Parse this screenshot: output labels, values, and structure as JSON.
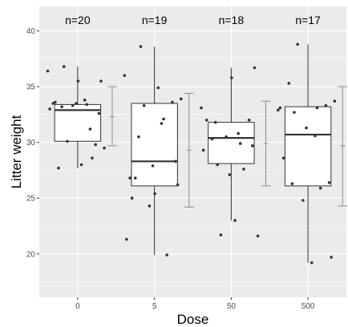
{
  "chart_data": {
    "type": "box",
    "xlabel": "Dose",
    "ylabel": "Litter weight",
    "categories": [
      "0",
      "5",
      "50",
      "500"
    ],
    "ylim": [
      16.1,
      42.2
    ],
    "yticks": [
      20,
      25,
      30,
      35,
      40
    ],
    "grid": true,
    "background": "#ebebeb",
    "gridColor": "#ffffff",
    "annotations": [
      "n=20",
      "n=19",
      "n=18",
      "n=17"
    ],
    "boxes": [
      {
        "category": "0",
        "n": 20,
        "lower_whisker": 27.7,
        "q1": 30.1,
        "median": 32.9,
        "q3": 33.4,
        "upper_whisker": 36.8
      },
      {
        "category": "5",
        "n": 19,
        "lower_whisker": 19.9,
        "q1": 26.1,
        "median": 28.3,
        "q3": 33.5,
        "upper_whisker": 38.6
      },
      {
        "category": "50",
        "n": 18,
        "lower_whisker": 23.0,
        "q1": 28.1,
        "median": 30.4,
        "q3": 31.8,
        "upper_whisker": 36.7
      },
      {
        "category": "500",
        "n": 17,
        "lower_whisker": 19.2,
        "q1": 26.1,
        "median": 30.7,
        "q3": 33.2,
        "upper_whisker": 38.8
      }
    ],
    "error_bars": [
      {
        "category": "0",
        "mean": 32.3,
        "low": 29.7,
        "high": 35.0
      },
      {
        "category": "5",
        "mean": 29.3,
        "low": 24.2,
        "high": 34.4
      },
      {
        "category": "50",
        "mean": 29.9,
        "low": 26.1,
        "high": 33.7
      },
      {
        "category": "500",
        "mean": 29.7,
        "low": 24.3,
        "high": 35.0
      }
    ],
    "points": [
      {
        "category": "0",
        "values": [
          36.4,
          33.8,
          33.2,
          32.6,
          33.5,
          33.5,
          31.2,
          30.1,
          29.5,
          28.0,
          27.7,
          29.8,
          33.3,
          33.0,
          33.4,
          36.8,
          35.5,
          35.5,
          33.6,
          28.6
        ]
      },
      {
        "category": "5",
        "values": [
          36.0,
          31.7,
          30.5,
          28.3,
          27.9,
          26.8,
          19.9,
          33.3,
          33.9,
          34.9,
          26.8,
          33.6,
          24.3,
          21.3,
          32.1,
          38.6,
          26.2,
          25.4,
          25.0
        ]
      },
      {
        "category": "50",
        "values": [
          33.1,
          30.8,
          31.8,
          29.7,
          27.1,
          32.0,
          27.6,
          21.7,
          21.6,
          23.0,
          30.3,
          32.0,
          30.5,
          29.3,
          29.9,
          28.0,
          36.7,
          35.8
        ]
      },
      {
        "category": "500",
        "values": [
          32.9,
          30.6,
          26.3,
          26.4,
          31.3,
          28.6,
          25.9,
          38.8,
          33.7,
          19.2,
          35.3,
          33.3,
          24.8,
          33.1,
          33.1,
          32.7,
          19.7
        ]
      }
    ]
  }
}
